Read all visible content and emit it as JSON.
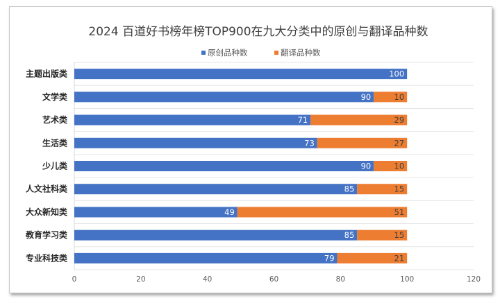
{
  "chart_data": {
    "type": "bar",
    "orientation": "horizontal",
    "stacked": true,
    "title": "2024  百道好书榜年榜TOP900在九大分类中的原创与翻译品种数",
    "xlabel": "",
    "ylabel": "",
    "xlim": [
      0,
      120
    ],
    "xticks": [
      0,
      20,
      40,
      60,
      80,
      100,
      120
    ],
    "grid": "horizontal-category-separators",
    "legend_position": "top-center",
    "categories": [
      "主题出版类",
      "文学类",
      "艺术类",
      "生活类",
      "少儿类",
      "人文社科类",
      "大众新知类",
      "教育学习类",
      "专业科技类"
    ],
    "series": [
      {
        "name": "原创品种数",
        "color": "#4472C4",
        "values": [
          100,
          90,
          71,
          73,
          90,
          85,
          49,
          85,
          79
        ]
      },
      {
        "name": "翻译品种数",
        "color": "#ED7D31",
        "values": [
          0,
          10,
          29,
          27,
          10,
          15,
          51,
          15,
          21
        ]
      }
    ],
    "data_labels": true
  }
}
